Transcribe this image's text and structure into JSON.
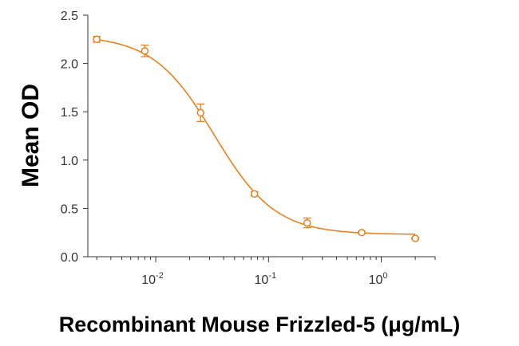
{
  "chart_data": {
    "type": "scatter",
    "xlabel": "Recombinant Mouse Frizzled-5 (μg/mL)",
    "ylabel": "Mean OD",
    "x_scale": "log",
    "xlim": [
      0.0025,
      3.0
    ],
    "ylim": [
      0,
      2.5
    ],
    "x_ticks": [
      {
        "value": 0.01,
        "base": "10",
        "exp": "-2"
      },
      {
        "value": 0.1,
        "base": "10",
        "exp": "-1"
      },
      {
        "value": 1,
        "base": "10",
        "exp": "0"
      }
    ],
    "y_ticks": [
      {
        "value": 0,
        "label": "0.0"
      },
      {
        "value": 0.5,
        "label": "0.5"
      },
      {
        "value": 1.0,
        "label": "1.0"
      },
      {
        "value": 1.5,
        "label": "1.5"
      },
      {
        "value": 2.0,
        "label": "2.0"
      },
      {
        "value": 2.5,
        "label": "2.5"
      }
    ],
    "grid": false,
    "color": "#E8821E",
    "series": [
      {
        "points": [
          {
            "x": 0.003,
            "y": 2.25,
            "err": 0.03
          },
          {
            "x": 0.008,
            "y": 2.13,
            "err": 0.06
          },
          {
            "x": 0.025,
            "y": 1.49,
            "err": 0.09
          },
          {
            "x": 0.075,
            "y": 0.65,
            "err": 0.02
          },
          {
            "x": 0.22,
            "y": 0.35,
            "err": 0.05
          },
          {
            "x": 0.67,
            "y": 0.25,
            "err": 0.01
          },
          {
            "x": 2.0,
            "y": 0.19,
            "err": 0.01
          }
        ],
        "fit": {
          "type": "4PL",
          "top": 2.29,
          "bottom": 0.23,
          "ec50": 0.033,
          "hill": 1.6
        }
      }
    ]
  }
}
